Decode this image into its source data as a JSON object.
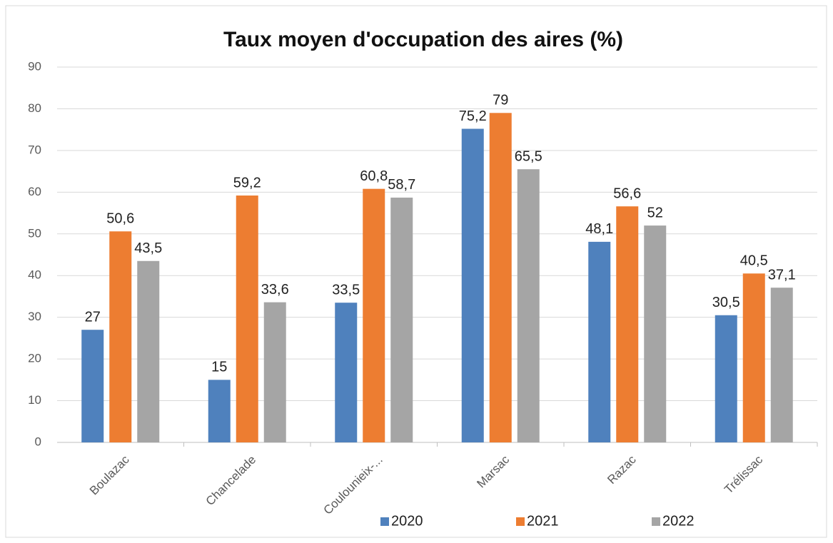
{
  "chart_data": {
    "type": "bar",
    "title": "Taux moyen d'occupation des aires (%)",
    "categories": [
      "Boulazac",
      "Chancelade",
      "Coulounieix-...",
      "Marsac",
      "Razac",
      "Trélissac"
    ],
    "series": [
      {
        "name": "2020",
        "color": "#4f81bd",
        "values": [
          27,
          15,
          33.5,
          75.2,
          48.1,
          30.5
        ],
        "value_labels": [
          "27",
          "15",
          "33,5",
          "75,2",
          "48,1",
          "30,5"
        ]
      },
      {
        "name": "2021",
        "color": "#ed7d31",
        "values": [
          50.6,
          59.2,
          60.8,
          79,
          56.6,
          40.5
        ],
        "value_labels": [
          "50,6",
          "59,2",
          "60,8",
          "79",
          "56,6",
          "40,5"
        ]
      },
      {
        "name": "2022",
        "color": "#a5a5a5",
        "values": [
          43.5,
          33.6,
          58.7,
          65.5,
          52,
          37.1
        ],
        "value_labels": [
          "43,5",
          "33,6",
          "58,7",
          "65,5",
          "52",
          "37,1"
        ]
      }
    ],
    "ylim": [
      0,
      90
    ],
    "yticks": [
      0,
      10,
      20,
      30,
      40,
      50,
      60,
      70,
      80,
      90
    ],
    "grid": true,
    "legend": "bottom"
  }
}
